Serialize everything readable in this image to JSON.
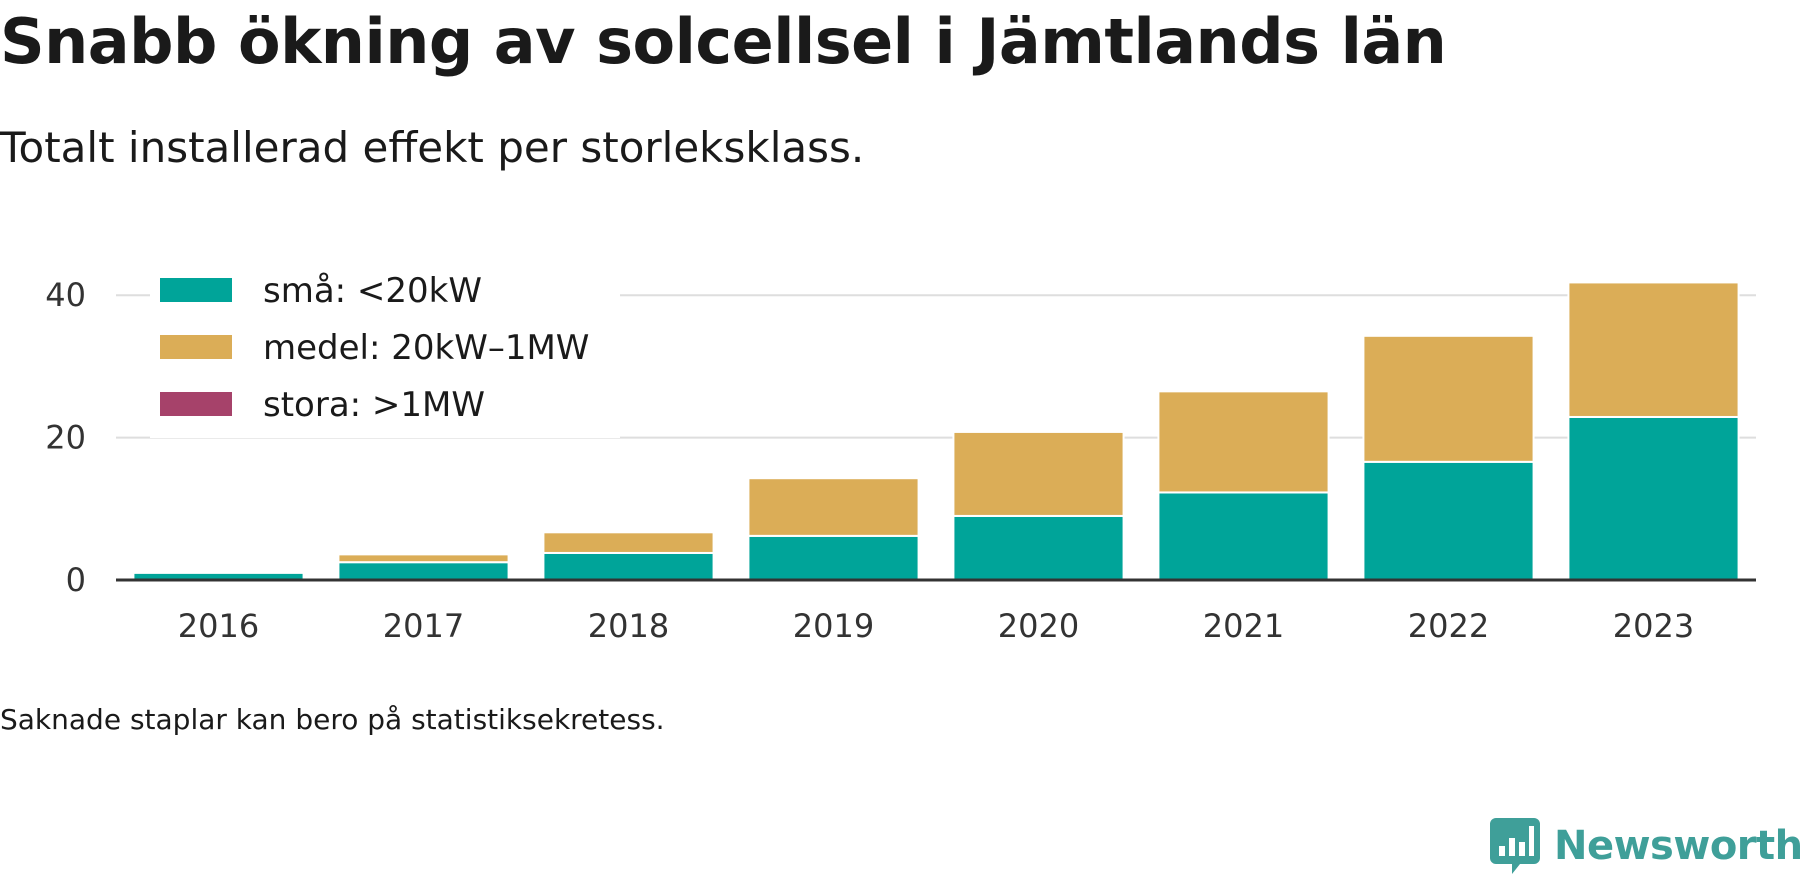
{
  "title": "Snabb ökning av solcellsel i Jämtlands län",
  "subtitle": "Totalt installerad effekt per storleksklass.",
  "footnote": "Saknade staplar kan bero på statistiksekretess.",
  "brand": {
    "name": "Newsworthy",
    "logo_icon": "newsworthy-chart-bubble-icon",
    "color": "#3f9f99"
  },
  "chart_data": {
    "type": "bar",
    "stacked": true,
    "categories": [
      "2016",
      "2017",
      "2018",
      "2019",
      "2020",
      "2021",
      "2022",
      "2023"
    ],
    "series": [
      {
        "name": "små: <20kW",
        "color": "#00a499",
        "values": [
          1.0,
          2.5,
          3.8,
          6.2,
          9.0,
          12.3,
          16.6,
          22.9
        ]
      },
      {
        "name": "medel: 20kW–1MW",
        "color": "#dbad57",
        "values": [
          0,
          1.1,
          2.9,
          8.1,
          11.8,
          14.2,
          17.7,
          18.9
        ]
      },
      {
        "name": "stora: >1MW",
        "color": "#a6426a",
        "values": [
          0,
          0,
          0,
          0,
          0,
          0,
          0,
          0
        ]
      }
    ],
    "ylim": [
      0,
      42
    ],
    "yticks": [
      0,
      20,
      40
    ],
    "xlabel": "",
    "ylabel": "",
    "grid": true,
    "legend": "top-left"
  }
}
